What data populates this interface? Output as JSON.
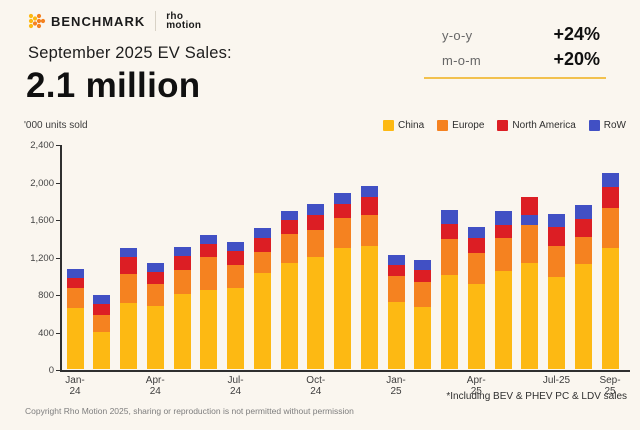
{
  "header": {
    "brand": "BENCHMARK",
    "partner": "rho\nmotion",
    "title": "September 2025 EV Sales:",
    "headline": "2.1 million"
  },
  "stats": {
    "rows": [
      {
        "label": "y-o-y",
        "value": "+24%"
      },
      {
        "label": "m-o-m",
        "value": "+20%"
      }
    ]
  },
  "colors": {
    "background": "#FAF6EF",
    "accent_underline": "#F2C14E",
    "brand_dot_yellow": "#FDB913",
    "brand_dot_orange": "#F58220"
  },
  "chart_data": {
    "type": "bar",
    "subtype": "stacked-vertical",
    "ylabel": "'000 units sold",
    "ylim": [
      0,
      2400
    ],
    "grid": false,
    "legend_position": "top-right",
    "legend": [
      "China",
      "Europe",
      "North America",
      "RoW"
    ],
    "series_colors": {
      "China": "#FDB913",
      "Europe": "#F58220",
      "North America": "#DC1E24",
      "RoW": "#4150C4"
    },
    "yticks": [
      {
        "v": 0,
        "label": "0"
      },
      {
        "v": 400,
        "label": "400"
      },
      {
        "v": 800,
        "label": "800"
      },
      {
        "v": 1200,
        "label": "1,200"
      },
      {
        "v": 1600,
        "label": "1,600"
      },
      {
        "v": 2000,
        "label": "2,000"
      },
      {
        "v": 2400,
        "label": "2,400"
      }
    ],
    "x_labels": [
      {
        "index": 0,
        "text": "Jan-\n24"
      },
      {
        "index": 3,
        "text": "Apr-\n24"
      },
      {
        "index": 6,
        "text": "Jul-\n24"
      },
      {
        "index": 9,
        "text": "Oct-\n24"
      },
      {
        "index": 12,
        "text": "Jan-\n25"
      },
      {
        "index": 15,
        "text": "Apr-\n25"
      },
      {
        "index": 18,
        "text": "Jul-25"
      },
      {
        "index": 20,
        "text": "Sep-\n25"
      }
    ],
    "bars": [
      {
        "month": "Jan-24",
        "stack": [
          [
            "China",
            650
          ],
          [
            "Europe",
            210
          ],
          [
            "North America",
            115
          ],
          [
            "RoW",
            90
          ]
        ]
      },
      {
        "month": "Feb-24",
        "stack": [
          [
            "China",
            390
          ],
          [
            "Europe",
            190
          ],
          [
            "North America",
            110
          ],
          [
            "RoW",
            100
          ]
        ]
      },
      {
        "month": "Mar-24",
        "stack": [
          [
            "China",
            705
          ],
          [
            "Europe",
            310
          ],
          [
            "North America",
            175
          ],
          [
            "RoW",
            100
          ]
        ]
      },
      {
        "month": "Apr-24",
        "stack": [
          [
            "China",
            675
          ],
          [
            "Europe",
            230
          ],
          [
            "North America",
            135
          ],
          [
            "RoW",
            90
          ]
        ]
      },
      {
        "month": "May-24",
        "stack": [
          [
            "China",
            805
          ],
          [
            "Europe",
            250
          ],
          [
            "North America",
            150
          ],
          [
            "RoW",
            95
          ]
        ]
      },
      {
        "month": "Jun-24",
        "stack": [
          [
            "China",
            845
          ],
          [
            "Europe",
            345
          ],
          [
            "North America",
            140
          ],
          [
            "RoW",
            100
          ]
        ]
      },
      {
        "month": "Jul-24",
        "stack": [
          [
            "China",
            865
          ],
          [
            "Europe",
            245
          ],
          [
            "North America",
            145
          ],
          [
            "RoW",
            95
          ]
        ]
      },
      {
        "month": "Aug-24",
        "stack": [
          [
            "China",
            1020
          ],
          [
            "Europe",
            225
          ],
          [
            "North America",
            155
          ],
          [
            "RoW",
            100
          ]
        ]
      },
      {
        "month": "Sep-24",
        "stack": [
          [
            "China",
            1130
          ],
          [
            "Europe",
            305
          ],
          [
            "North America",
            150
          ],
          [
            "RoW",
            105
          ]
        ]
      },
      {
        "month": "Oct-24",
        "stack": [
          [
            "China",
            1200
          ],
          [
            "Europe",
            285
          ],
          [
            "North America",
            155
          ],
          [
            "RoW",
            115
          ]
        ]
      },
      {
        "month": "Nov-24",
        "stack": [
          [
            "China",
            1290
          ],
          [
            "Europe",
            320
          ],
          [
            "North America",
            155
          ],
          [
            "RoW",
            115
          ]
        ]
      },
      {
        "month": "Dec-24",
        "stack": [
          [
            "China",
            1315
          ],
          [
            "Europe",
            325
          ],
          [
            "North America",
            200
          ],
          [
            "RoW",
            110
          ]
        ]
      },
      {
        "month": "Jan-25",
        "stack": [
          [
            "China",
            715
          ],
          [
            "Europe",
            275
          ],
          [
            "North America",
            120
          ],
          [
            "RoW",
            105
          ]
        ]
      },
      {
        "month": "Feb-25",
        "stack": [
          [
            "China",
            665
          ],
          [
            "Europe",
            265
          ],
          [
            "North America",
            125
          ],
          [
            "RoW",
            110
          ]
        ]
      },
      {
        "month": "Mar-25",
        "stack": [
          [
            "China",
            1000
          ],
          [
            "Europe",
            385
          ],
          [
            "North America",
            160
          ],
          [
            "RoW",
            150
          ]
        ]
      },
      {
        "month": "Apr-25",
        "stack": [
          [
            "China",
            910
          ],
          [
            "Europe",
            330
          ],
          [
            "North America",
            155
          ],
          [
            "RoW",
            115
          ]
        ]
      },
      {
        "month": "May-25",
        "stack": [
          [
            "China",
            1045
          ],
          [
            "Europe",
            355
          ],
          [
            "North America",
            135
          ],
          [
            "RoW",
            155
          ]
        ]
      },
      {
        "month": "Jun-25",
        "stack": [
          [
            "China",
            1135
          ],
          [
            "Europe",
            400
          ],
          [
            "RoW",
            105
          ],
          [
            "North America",
            195
          ]
        ]
      },
      {
        "month": "Jul-25",
        "stack": [
          [
            "China",
            985
          ],
          [
            "Europe",
            330
          ],
          [
            "North America",
            205
          ],
          [
            "RoW",
            130
          ]
        ]
      },
      {
        "month": "Aug-25",
        "stack": [
          [
            "China",
            1120
          ],
          [
            "Europe",
            290
          ],
          [
            "North America",
            190
          ],
          [
            "RoW",
            145
          ]
        ]
      },
      {
        "month": "Sep-25",
        "stack": [
          [
            "China",
            1295
          ],
          [
            "Europe",
            420
          ],
          [
            "North America",
            225
          ],
          [
            "RoW",
            155
          ]
        ]
      }
    ]
  },
  "footer": {
    "note": "*Including BEV & PHEV PC & LDV sales",
    "copyright": "Copyright Rho Motion 2025, sharing or reproduction is not permitted without permission"
  }
}
